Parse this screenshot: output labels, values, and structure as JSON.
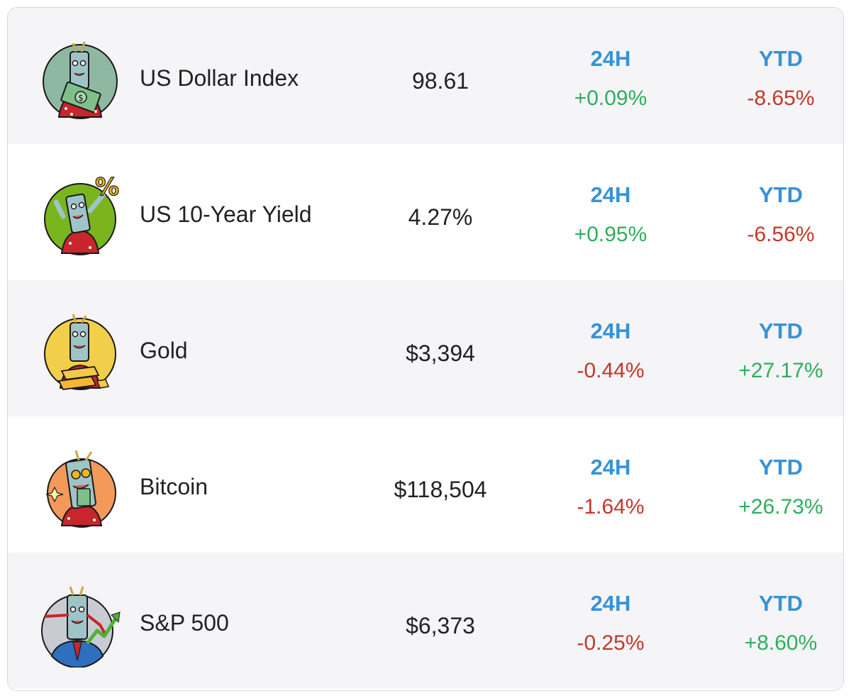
{
  "columns": {
    "change_24h_label": "24H",
    "change_ytd_label": "YTD"
  },
  "colors": {
    "header_blue": "#3792d6",
    "positive_green": "#2fae5c",
    "negative_red": "#c0392b",
    "shaded_row": "#f5f5f8"
  },
  "assets": [
    {
      "name": "US Dollar Index",
      "price": "98.61",
      "change_24h": "+0.09%",
      "change_ytd": "-8.65%",
      "avatar_icon": "dollar-bill-mascot-icon",
      "avatar_bg": "#8fb8a3"
    },
    {
      "name": "US 10-Year Yield",
      "price": "4.27%",
      "change_24h": "+0.95%",
      "change_ytd": "-6.56%",
      "avatar_icon": "percent-sign-mascot-icon",
      "avatar_bg": "#7ab51d"
    },
    {
      "name": "Gold",
      "price": "$3,394",
      "change_24h": "-0.44%",
      "change_ytd": "+27.17%",
      "avatar_icon": "gold-bars-mascot-icon",
      "avatar_bg": "#f2cf4a"
    },
    {
      "name": "Bitcoin",
      "price": "$118,504",
      "change_24h": "-1.64%",
      "change_ytd": "+26.73%",
      "avatar_icon": "bitcoin-mascot-icon",
      "avatar_bg": "#f39a5b"
    },
    {
      "name": "S&P 500",
      "price": "$6,373",
      "change_24h": "-0.25%",
      "change_ytd": "+8.60%",
      "avatar_icon": "stock-chart-mascot-icon",
      "avatar_bg": "#c9cbd2"
    }
  ]
}
